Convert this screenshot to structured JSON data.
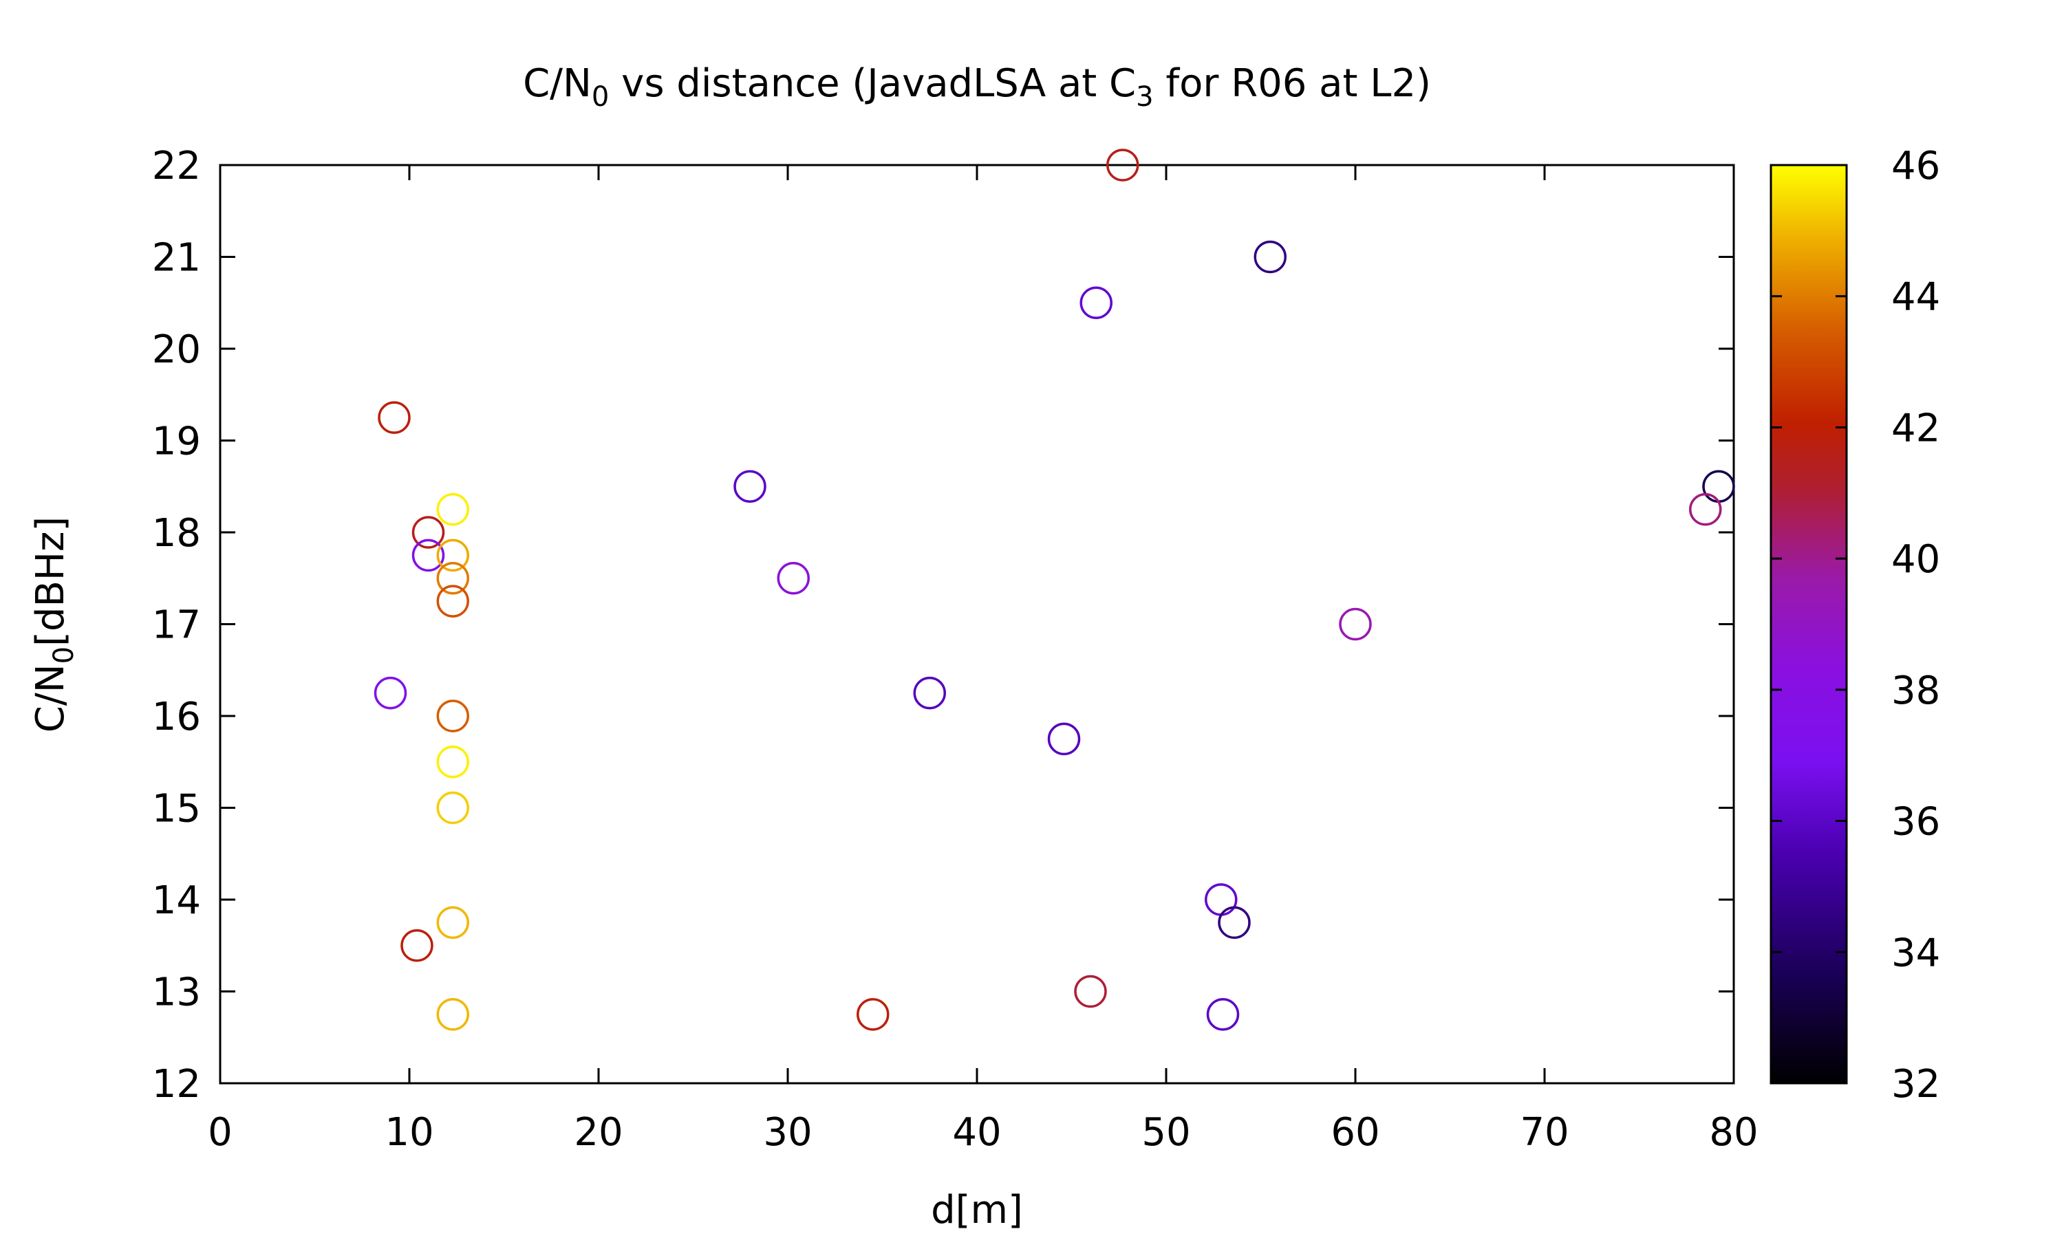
{
  "chart_data": {
    "type": "scatter",
    "title": {
      "pre": "C/N",
      "sub1": "0",
      "mid": " vs distance (JavadLSA at C",
      "sub2": "3",
      "post": " for R06 at L2)"
    },
    "xlabel": "d[m]",
    "ylabel": {
      "pre": "C/N",
      "sub": "0",
      "post": "[dBHz]"
    },
    "xlim": [
      0,
      80
    ],
    "ylim": [
      12,
      22
    ],
    "xticks": [
      0,
      10,
      20,
      30,
      40,
      50,
      60,
      70,
      80
    ],
    "yticks": [
      12,
      13,
      14,
      15,
      16,
      17,
      18,
      19,
      20,
      21,
      22
    ],
    "colorbar": {
      "range": [
        32,
        46
      ],
      "ticks": [
        32,
        34,
        36,
        38,
        40,
        42,
        44,
        46
      ],
      "palette": "black-blue-purple-red-orange-yellow"
    },
    "marker": "open-circle",
    "points": [
      {
        "x": 47.7,
        "y": 22.0,
        "c": 41.5
      },
      {
        "x": 55.5,
        "y": 21.0,
        "c": 34.5
      },
      {
        "x": 46.3,
        "y": 20.5,
        "c": 36.2
      },
      {
        "x": 9.2,
        "y": 19.25,
        "c": 41.8
      },
      {
        "x": 28.0,
        "y": 18.5,
        "c": 36.0
      },
      {
        "x": 79.2,
        "y": 18.5,
        "c": 33.5
      },
      {
        "x": 78.5,
        "y": 18.25,
        "c": 40.2
      },
      {
        "x": 12.3,
        "y": 18.25,
        "c": 45.8
      },
      {
        "x": 11.0,
        "y": 18.0,
        "c": 41.5
      },
      {
        "x": 11.0,
        "y": 17.75,
        "c": 37.5
      },
      {
        "x": 12.3,
        "y": 17.75,
        "c": 44.8
      },
      {
        "x": 12.3,
        "y": 17.5,
        "c": 44.0
      },
      {
        "x": 30.3,
        "y": 17.5,
        "c": 38.5
      },
      {
        "x": 12.3,
        "y": 17.25,
        "c": 43.2
      },
      {
        "x": 60.0,
        "y": 17.0,
        "c": 39.5
      },
      {
        "x": 9.0,
        "y": 16.25,
        "c": 37.5
      },
      {
        "x": 37.5,
        "y": 16.25,
        "c": 35.8
      },
      {
        "x": 12.3,
        "y": 16.0,
        "c": 43.5
      },
      {
        "x": 44.6,
        "y": 15.75,
        "c": 35.8
      },
      {
        "x": 12.3,
        "y": 15.5,
        "c": 45.8
      },
      {
        "x": 12.3,
        "y": 15.0,
        "c": 45.3
      },
      {
        "x": 52.9,
        "y": 14.0,
        "c": 36.2
      },
      {
        "x": 53.6,
        "y": 13.75,
        "c": 34.5
      },
      {
        "x": 12.3,
        "y": 13.75,
        "c": 45.0
      },
      {
        "x": 10.4,
        "y": 13.5,
        "c": 41.8
      },
      {
        "x": 46.0,
        "y": 13.0,
        "c": 41.0
      },
      {
        "x": 12.3,
        "y": 12.75,
        "c": 45.0
      },
      {
        "x": 34.5,
        "y": 12.75,
        "c": 41.8
      },
      {
        "x": 53.0,
        "y": 12.75,
        "c": 36.0
      }
    ]
  }
}
